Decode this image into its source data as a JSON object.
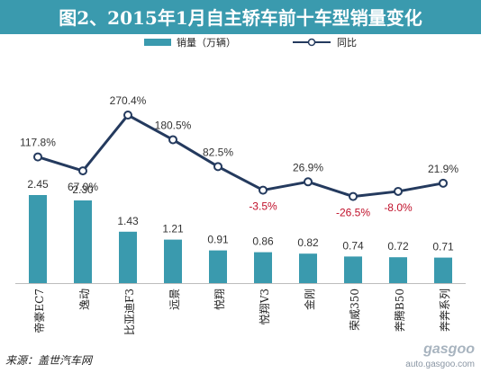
{
  "chart_data": {
    "type": "bar",
    "title": "图2、2015年1月自主轿车前十车型销量变化",
    "categories": [
      "帝豪EC7",
      "逸动",
      "比亚迪F3",
      "远景",
      "悦翔",
      "悦翔V3",
      "金刚",
      "荣威350",
      "奔腾B50",
      "奔奔系列"
    ],
    "series": [
      {
        "name": "销量（万辆）",
        "type": "bar",
        "values": [
          2.45,
          2.3,
          1.43,
          1.21,
          0.91,
          0.86,
          0.82,
          0.74,
          0.72,
          0.71
        ],
        "labels": [
          "2.45",
          "2.30",
          "1.43",
          "1.21",
          "0.91",
          "0.86",
          "0.82",
          "0.74",
          "0.72",
          "0.71"
        ],
        "color": "#3a9aae"
      },
      {
        "name": "同比",
        "type": "line",
        "values": [
          117.8,
          67.0,
          270.4,
          180.5,
          82.5,
          -3.5,
          26.9,
          -26.5,
          -8.0,
          21.9
        ],
        "labels": [
          "117.8%",
          "67.0%",
          "270.4%",
          "180.5%",
          "82.5%",
          "-3.5%",
          "26.9%",
          "-26.5%",
          "-8.0%",
          "21.9%"
        ],
        "color": "#243a5e"
      }
    ],
    "legend_position": "top",
    "source": "来源：盖世汽车网",
    "watermark": "盖世汽车网 gasgoo auto.gasgoo.com"
  },
  "colors": {
    "title_bg": "#3a9aae",
    "title_text": "#ffffff",
    "bar": "#3a9aae",
    "line": "#243a5e",
    "negative_label": "#c0102a",
    "label": "#333333"
  }
}
